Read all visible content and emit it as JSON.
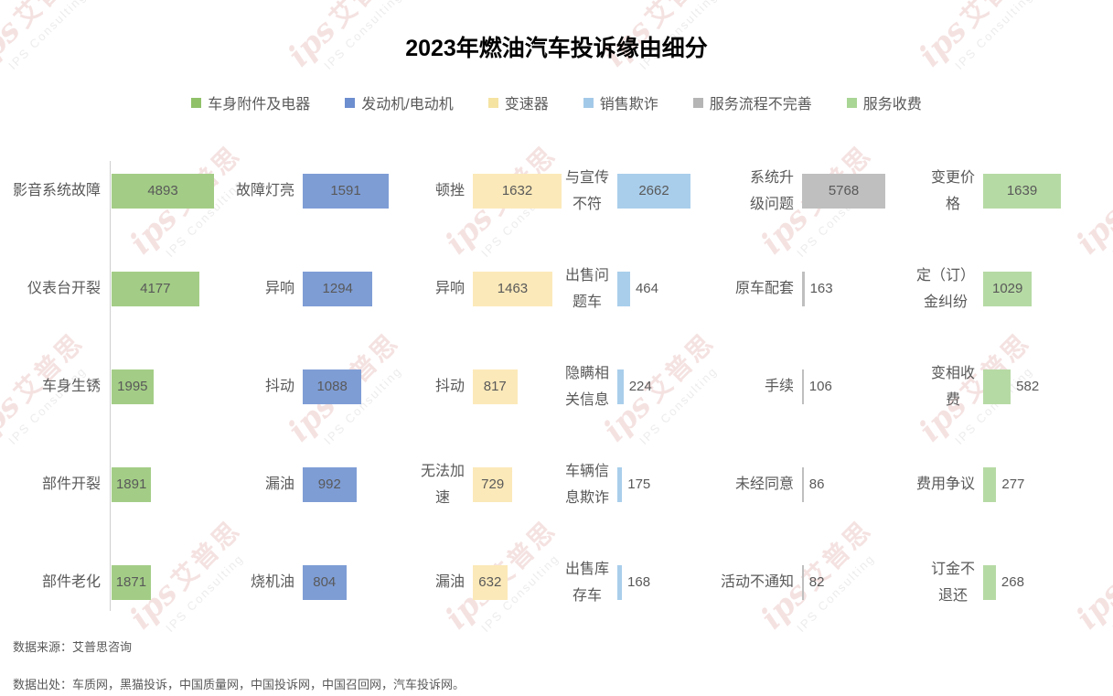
{
  "title": "2023年燃油汽车投诉缘由细分",
  "legend": [
    {
      "label": "车身附件及电器",
      "color": "#90C169"
    },
    {
      "label": "发动机/电动机",
      "color": "#6D8ECF"
    },
    {
      "label": "变速器",
      "color": "#F5E3A2"
    },
    {
      "label": "销售欺诈",
      "color": "#A3C9E8"
    },
    {
      "label": "服务流程不完善",
      "color": "#B5B5B5"
    },
    {
      "label": "服务收费",
      "color": "#A9D595"
    }
  ],
  "chart_data": {
    "type": "bar",
    "orientation": "horizontal",
    "title": "2023年燃油汽车投诉缘由细分",
    "value_labels": true,
    "grid": false,
    "panels": [
      {
        "name": "车身附件及电器",
        "bar_color": "#A3CD86",
        "items": [
          {
            "label": "影音系统故障",
            "value": 4893
          },
          {
            "label": "仪表台开裂",
            "value": 4177
          },
          {
            "label": "车身生锈",
            "value": 1995
          },
          {
            "label": "部件开裂",
            "value": 1891
          },
          {
            "label": "部件老化",
            "value": 1871
          }
        ]
      },
      {
        "name": "发动机/电动机",
        "bar_color": "#7E9DD5",
        "items": [
          {
            "label": "故障灯亮",
            "value": 1591
          },
          {
            "label": "异响",
            "value": 1294
          },
          {
            "label": "抖动",
            "value": 1088
          },
          {
            "label": "漏油",
            "value": 992
          },
          {
            "label": "烧机油",
            "value": 804
          }
        ]
      },
      {
        "name": "变速器",
        "bar_color": "#FBE9B9",
        "items": [
          {
            "label": "顿挫",
            "value": 1632
          },
          {
            "label": "异响",
            "value": 1463
          },
          {
            "label": "抖动",
            "value": 817
          },
          {
            "label": "无法加\n速",
            "value": 729
          },
          {
            "label": "漏油",
            "value": 632
          }
        ]
      },
      {
        "name": "销售欺诈",
        "bar_color": "#A9CEEB",
        "items": [
          {
            "label": "与宣传\n不符",
            "value": 2662
          },
          {
            "label": "出售问\n题车",
            "value": 464
          },
          {
            "label": "隐瞒相\n关信息",
            "value": 224
          },
          {
            "label": "车辆信\n息欺诈",
            "value": 175
          },
          {
            "label": "出售库\n存车",
            "value": 168
          }
        ]
      },
      {
        "name": "服务流程不完善",
        "bar_color": "#BFBFBF",
        "items": [
          {
            "label": "系统升\n级问题",
            "value": 5768
          },
          {
            "label": "原车配套",
            "value": 163
          },
          {
            "label": "手续",
            "value": 106
          },
          {
            "label": "未经同意",
            "value": 86
          },
          {
            "label": "活动不通知",
            "value": 82
          }
        ]
      },
      {
        "name": "服务收费",
        "bar_color": "#B6DAA4",
        "items": [
          {
            "label": "变更价\n格",
            "value": 1639
          },
          {
            "label": "定（订）\n金纠纷",
            "value": 1029
          },
          {
            "label": "变相收\n费",
            "value": 582
          },
          {
            "label": "费用争议",
            "value": 277
          },
          {
            "label": "订金不\n退还",
            "value": 268
          }
        ]
      }
    ]
  },
  "footer": {
    "source": "数据来源：艾普思咨询",
    "reference": "数据出处：车质网，黑猫投诉，中国质量网，中国投诉网，中国召回网，汽车投诉网。"
  },
  "watermark": {
    "logo": "ips",
    "brand": "艾普思",
    "subtitle": "IPS Consulting",
    "color_red": "#C0504D",
    "color_gray": "#8C8C8C"
  }
}
